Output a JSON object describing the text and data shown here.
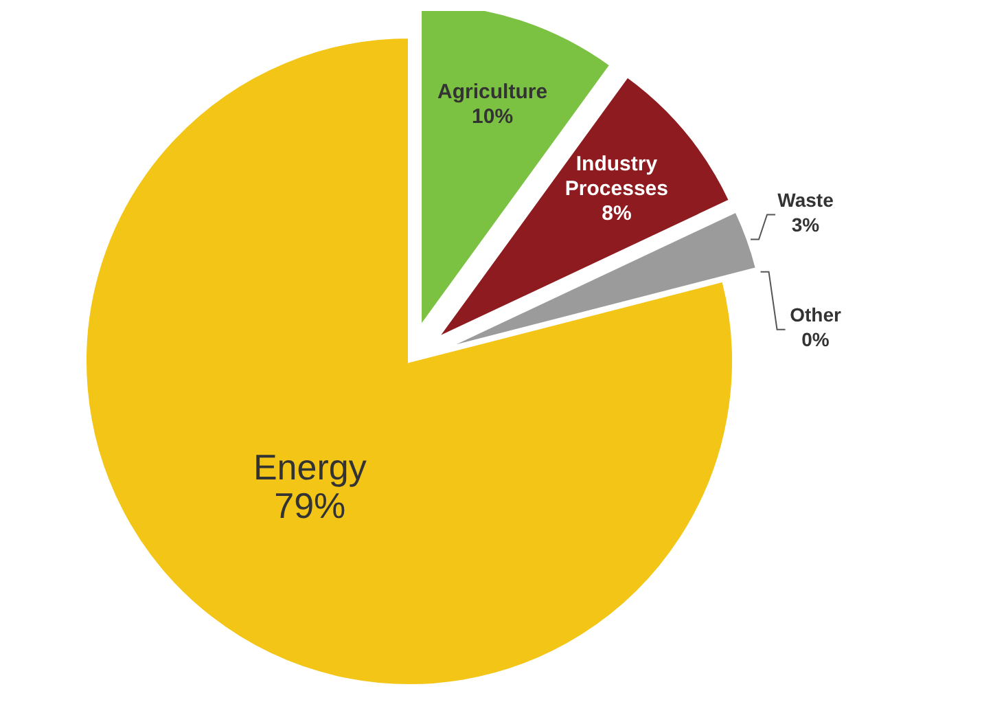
{
  "chart_data": {
    "type": "pie",
    "categories": [
      "Energy",
      "Agriculture",
      "Industry Processes",
      "Waste",
      "Other"
    ],
    "values": [
      79,
      10,
      8,
      3,
      0
    ],
    "value_labels": [
      "79%",
      "10%",
      "8%",
      "3%",
      "0%"
    ],
    "colors": [
      "#f3c516",
      "#7cc242",
      "#8e1b1f",
      "#9b9b9b",
      "#4b2a7a"
    ]
  }
}
